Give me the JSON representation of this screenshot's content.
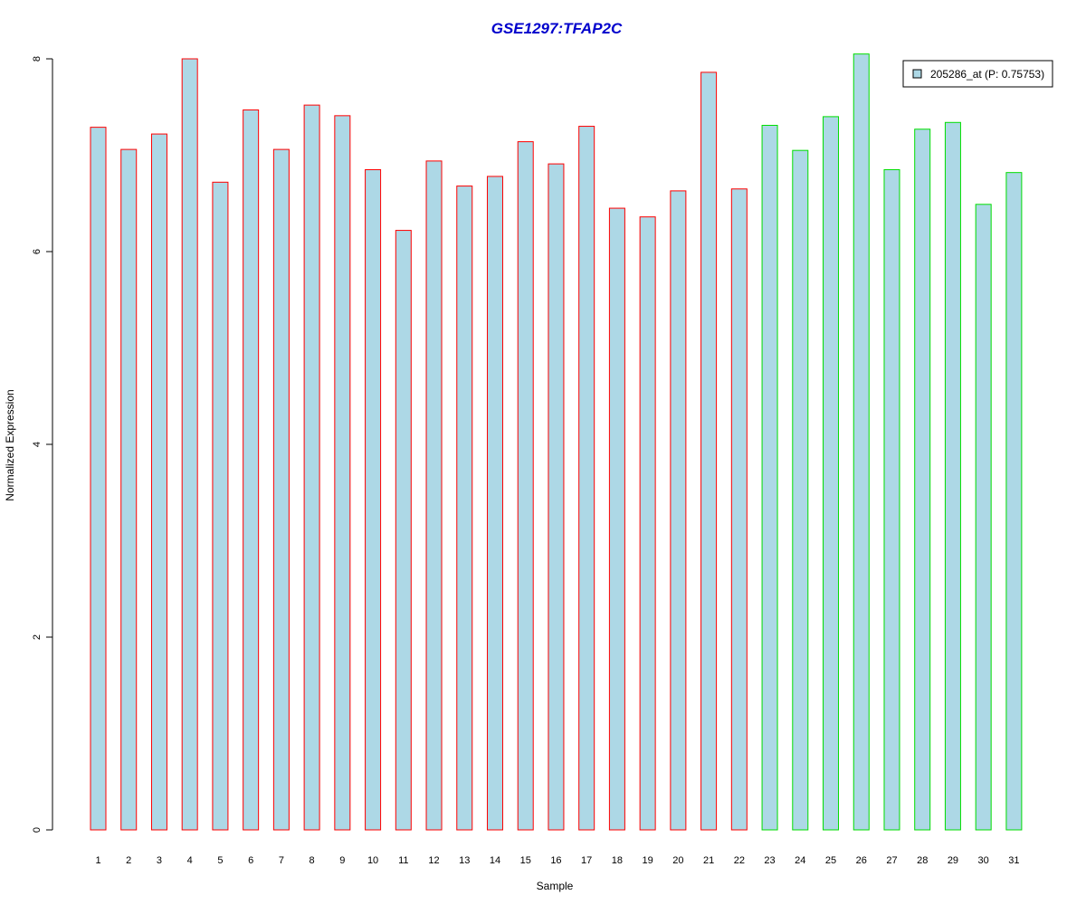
{
  "chart_data": {
    "type": "bar",
    "title": "GSE1297:TFAP2C",
    "xlabel": "Sample",
    "ylabel": "Normalized Expression",
    "ylim": [
      0,
      8
    ],
    "yticks": [
      0,
      2,
      4,
      6,
      8
    ],
    "grid": false,
    "legend_position": "top-right",
    "categories": [
      "1",
      "2",
      "3",
      "4",
      "5",
      "6",
      "7",
      "8",
      "9",
      "10",
      "11",
      "12",
      "13",
      "14",
      "15",
      "16",
      "17",
      "18",
      "19",
      "20",
      "21",
      "22",
      "23",
      "24",
      "25",
      "26",
      "27",
      "28",
      "29",
      "30",
      "31"
    ],
    "series": [
      {
        "name": "205286_at (P: 0.75753)",
        "values": [
          7.29,
          7.06,
          7.22,
          8.0,
          6.72,
          7.47,
          7.06,
          7.52,
          7.41,
          6.85,
          6.22,
          6.94,
          6.68,
          6.78,
          7.14,
          6.91,
          7.3,
          6.45,
          6.36,
          6.63,
          7.86,
          6.65,
          7.31,
          7.05,
          7.4,
          8.05,
          6.85,
          7.27,
          7.34,
          6.49,
          6.82
        ],
        "groups": [
          "a",
          "a",
          "a",
          "a",
          "a",
          "a",
          "a",
          "a",
          "a",
          "a",
          "a",
          "a",
          "a",
          "a",
          "a",
          "a",
          "a",
          "a",
          "a",
          "a",
          "a",
          "a",
          "b",
          "b",
          "b",
          "b",
          "b",
          "b",
          "b",
          "b",
          "b"
        ]
      }
    ],
    "colors": {
      "title": "#0000CC",
      "bar_fill": "#ADD8E6",
      "group_a_border": "#FF0000",
      "group_b_border": "#00DD00",
      "axis": "#000000"
    }
  }
}
